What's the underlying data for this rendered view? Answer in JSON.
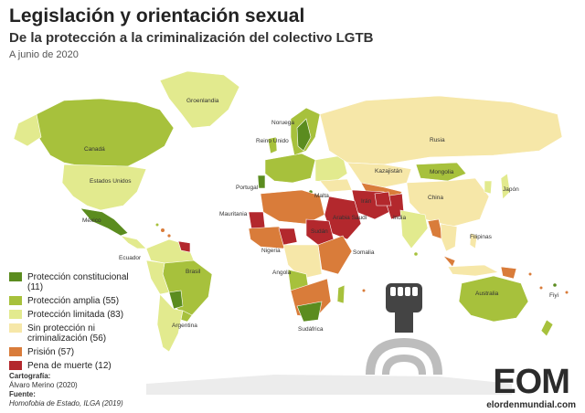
{
  "header": {
    "title": "Legislación y orientación sexual",
    "subtitle": "De la protección a la criminalización del colectivo LGTB",
    "date": "A junio de 2020"
  },
  "legend": [
    {
      "label": "Protección constitucional (11)",
      "color": "#5b8c1f"
    },
    {
      "label": "Protección amplia (55)",
      "color": "#a7c13c"
    },
    {
      "label": "Protección limitada (83)",
      "color": "#e2ea8e"
    },
    {
      "label": "Sin protección ni criminalización (56)",
      "color": "#f6e7a8"
    },
    {
      "label": "Prisión (57)",
      "color": "#d97c3a"
    },
    {
      "label": "Pena de muerte (12)",
      "color": "#b3282d"
    }
  ],
  "map_labels": {
    "groenlandia": "Groenlandia",
    "canada": "Canadá",
    "estados_unidos": "Estados Unidos",
    "mexico": "México",
    "ecuador": "Ecuador",
    "brasil": "Brasil",
    "argentina": "Argentina",
    "noruega": "Noruega",
    "reino_unido": "Reino Unido",
    "portugal": "Portugal",
    "malta": "Malta",
    "mauritania": "Mauritania",
    "nigeria": "Nigeria",
    "sudan": "Sudán",
    "angola": "Angola",
    "somalia": "Somalia",
    "sudafrica": "Sudáfrica",
    "rusia": "Rusia",
    "kazajistan": "Kazajistán",
    "mongolia": "Mongolia",
    "china": "China",
    "japon": "Japón",
    "iran": "Irán",
    "arabia": "Arabia Saudí",
    "india": "India",
    "filipinas": "Filipinas",
    "australia": "Australia",
    "fiyi": "Fiyi"
  },
  "credits": {
    "carto_heading": "Cartografía:",
    "carto_name": "Álvaro Merino (2020)",
    "source_heading": "Fuente:",
    "source_text": "Homofobia de Estado, ILGA (2019)"
  },
  "logo": {
    "brand": "EOM",
    "url": "elordenmundial.com"
  }
}
